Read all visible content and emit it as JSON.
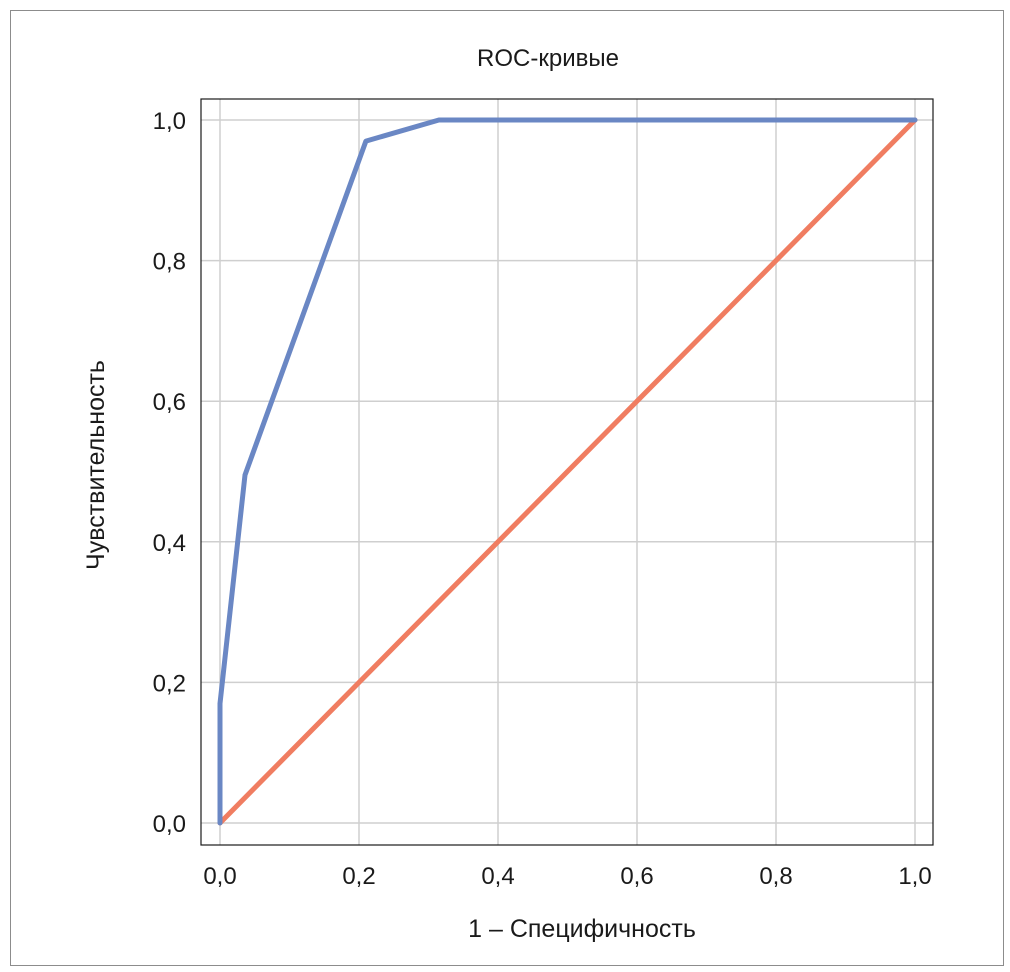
{
  "chart_data": {
    "type": "line",
    "title": "ROC-кривые",
    "xlabel": "1 – Специфичность",
    "ylabel": "Чувствительность",
    "xlim": [
      0,
      1
    ],
    "ylim": [
      0,
      1
    ],
    "xticks": [
      "0,0",
      "0,2",
      "0,4",
      "0,6",
      "0,8",
      "1,0"
    ],
    "yticks": [
      "0,0",
      "0,2",
      "0,4",
      "0,6",
      "0,8",
      "1,0"
    ],
    "grid": true,
    "legend": "none",
    "series": [
      {
        "color": "#6a87c4",
        "x": [
          0.0,
          0.0,
          0.036,
          0.21,
          0.315,
          1.0
        ],
        "y": [
          0.0,
          0.17,
          0.495,
          0.97,
          1.0,
          1.0
        ]
      },
      {
        "color": "#f07d61",
        "x": [
          0.0,
          1.0
        ],
        "y": [
          0.0,
          1.0
        ]
      }
    ]
  }
}
